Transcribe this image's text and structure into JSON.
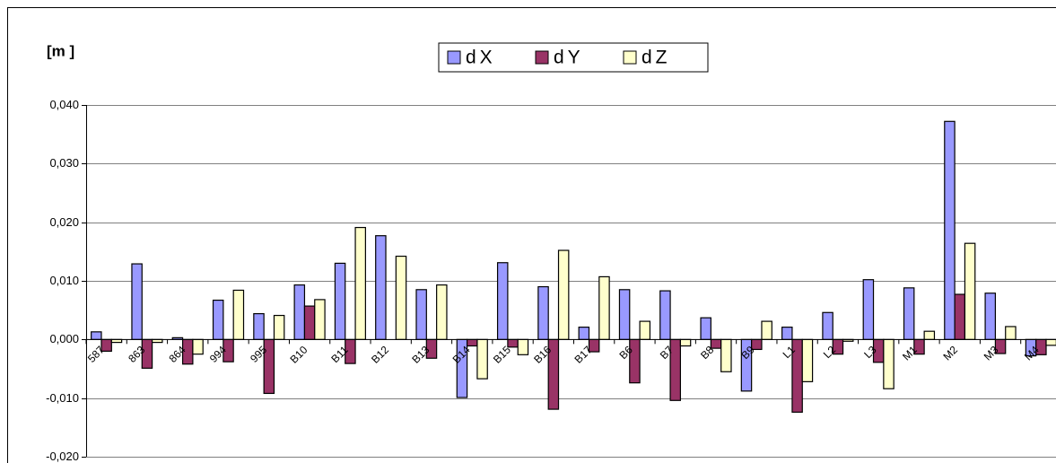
{
  "chart_data": {
    "type": "bar",
    "y_label": "[m ]",
    "categories": [
      "587",
      "863",
      "864",
      "994",
      "995",
      "B10",
      "B11",
      "B12",
      "B13",
      "B14",
      "B15",
      "B16",
      "B17",
      "B6",
      "B7",
      "B8",
      "B9",
      "L1",
      "L2",
      "L3",
      "M1",
      "M2",
      "M3",
      "M4"
    ],
    "series": [
      {
        "name": "dX",
        "color": "#9999ff",
        "values": [
          0.0013,
          0.0129,
          0.0003,
          0.0067,
          0.0044,
          0.0093,
          0.013,
          0.0177,
          0.0085,
          -0.0099,
          0.0131,
          0.009,
          0.0021,
          0.0085,
          0.0083,
          0.0037,
          -0.0088,
          0.0021,
          0.0046,
          0.0102,
          0.0088,
          0.0372,
          0.0079,
          -0.0028
        ]
      },
      {
        "name": "dY",
        "color": "#993366",
        "values": [
          -0.002,
          -0.0049,
          -0.0042,
          -0.0038,
          -0.0092,
          0.0057,
          -0.0041,
          0,
          -0.0032,
          -0.0011,
          -0.0013,
          -0.0119,
          -0.0021,
          -0.0074,
          -0.0104,
          -0.0015,
          -0.0017,
          -0.0124,
          -0.0025,
          -0.0039,
          -0.0025,
          0.0077,
          -0.0024,
          -0.0026
        ]
      },
      {
        "name": "dZ",
        "color": "#ffffcc",
        "values": [
          -0.0005,
          -0.0005,
          -0.0025,
          0.0084,
          0.0041,
          0.0068,
          0.0191,
          0.0142,
          0.0093,
          -0.0067,
          -0.0026,
          0.0152,
          0.0107,
          0.0031,
          -0.0011,
          -0.0055,
          0.0031,
          -0.0072,
          -0.0003,
          -0.0084,
          0.0014,
          0.0164,
          0.0022,
          -0.001
        ]
      }
    ],
    "ylim": [
      -0.02,
      0.04
    ],
    "yticks": [
      {
        "value": -0.02,
        "label": "-0,020"
      },
      {
        "value": -0.01,
        "label": "-0,010"
      },
      {
        "value": 0,
        "label": "0,000"
      },
      {
        "value": 0.01,
        "label": "0,010"
      },
      {
        "value": 0.02,
        "label": "0,020"
      },
      {
        "value": 0.03,
        "label": "0,030"
      },
      {
        "value": 0.04,
        "label": "0,040"
      }
    ],
    "grid": true,
    "legend": "top"
  }
}
